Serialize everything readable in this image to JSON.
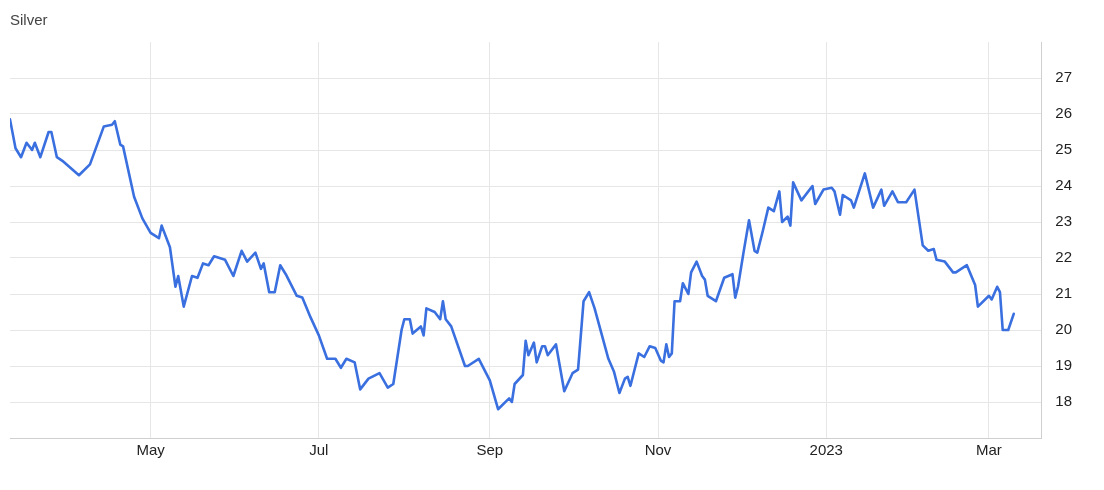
{
  "chart_data": {
    "type": "line",
    "title": "Silver",
    "xlim": [
      "2022-03-11",
      "2023-03-20"
    ],
    "xticks": [
      {
        "value": "2022-05-01",
        "label": "May"
      },
      {
        "value": "2022-07-01",
        "label": "Jul"
      },
      {
        "value": "2022-09-01",
        "label": "Sep"
      },
      {
        "value": "2022-11-01",
        "label": "Nov"
      },
      {
        "value": "2023-01-01",
        "label": "2023"
      },
      {
        "value": "2023-03-01",
        "label": "Mar"
      }
    ],
    "ylim": [
      17,
      28
    ],
    "yticks": [
      18,
      19,
      20,
      21,
      22,
      23,
      24,
      25,
      26,
      27
    ],
    "grid": true,
    "x": [
      "2022-03-11",
      "2022-03-13",
      "2022-03-15",
      "2022-03-17",
      "2022-03-19",
      "2022-03-20",
      "2022-03-22",
      "2022-03-25",
      "2022-03-26",
      "2022-03-28",
      "2022-03-30",
      "2022-04-05",
      "2022-04-09",
      "2022-04-14",
      "2022-04-17",
      "2022-04-18",
      "2022-04-20",
      "2022-04-21",
      "2022-04-25",
      "2022-04-28",
      "2022-05-01",
      "2022-05-04",
      "2022-05-05",
      "2022-05-08",
      "2022-05-10",
      "2022-05-11",
      "2022-05-13",
      "2022-05-16",
      "2022-05-18",
      "2022-05-20",
      "2022-05-22",
      "2022-05-24",
      "2022-05-28",
      "2022-05-31",
      "2022-06-03",
      "2022-06-05",
      "2022-06-08",
      "2022-06-10",
      "2022-06-11",
      "2022-06-13",
      "2022-06-15",
      "2022-06-17",
      "2022-06-19",
      "2022-06-23",
      "2022-06-25",
      "2022-06-28",
      "2022-07-01",
      "2022-07-04",
      "2022-07-07",
      "2022-07-09",
      "2022-07-11",
      "2022-07-14",
      "2022-07-16",
      "2022-07-19",
      "2022-07-23",
      "2022-07-26",
      "2022-07-28",
      "2022-07-31",
      "2022-08-01",
      "2022-08-03",
      "2022-08-04",
      "2022-08-07",
      "2022-08-08",
      "2022-08-09",
      "2022-08-12",
      "2022-08-14",
      "2022-08-15",
      "2022-08-16",
      "2022-08-18",
      "2022-08-23",
      "2022-08-24",
      "2022-08-28",
      "2022-09-01",
      "2022-09-04",
      "2022-09-08",
      "2022-09-09",
      "2022-09-10",
      "2022-09-13",
      "2022-09-14",
      "2022-09-15",
      "2022-09-17",
      "2022-09-18",
      "2022-09-20",
      "2022-09-21",
      "2022-09-22",
      "2022-09-25",
      "2022-09-28",
      "2022-10-01",
      "2022-10-03",
      "2022-10-05",
      "2022-10-07",
      "2022-10-09",
      "2022-10-14",
      "2022-10-16",
      "2022-10-18",
      "2022-10-20",
      "2022-10-21",
      "2022-10-22",
      "2022-10-25",
      "2022-10-27",
      "2022-10-29",
      "2022-10-31",
      "2022-11-02",
      "2022-11-03",
      "2022-11-04",
      "2022-11-05",
      "2022-11-06",
      "2022-11-07",
      "2022-11-09",
      "2022-11-10",
      "2022-11-12",
      "2022-11-13",
      "2022-11-15",
      "2022-11-17",
      "2022-11-18",
      "2022-11-19",
      "2022-11-22",
      "2022-11-25",
      "2022-11-28",
      "2022-11-29",
      "2022-11-30",
      "2022-12-02",
      "2022-12-04",
      "2022-12-06",
      "2022-12-07",
      "2022-12-09",
      "2022-12-11",
      "2022-12-13",
      "2022-12-15",
      "2022-12-16",
      "2022-12-18",
      "2022-12-19",
      "2022-12-20",
      "2022-12-23",
      "2022-12-27",
      "2022-12-28",
      "2022-12-31",
      "2023-01-03",
      "2023-01-04",
      "2023-01-06",
      "2023-01-07",
      "2023-01-10",
      "2023-01-11",
      "2023-01-15",
      "2023-01-18",
      "2023-01-21",
      "2023-01-22",
      "2023-01-25",
      "2023-01-27",
      "2023-01-30",
      "2023-02-02",
      "2023-02-05",
      "2023-02-07",
      "2023-02-09",
      "2023-02-10",
      "2023-02-13",
      "2023-02-16",
      "2023-02-17",
      "2023-02-21",
      "2023-02-24",
      "2023-02-25",
      "2023-03-01",
      "2023-03-02",
      "2023-03-04",
      "2023-03-05",
      "2023-03-06",
      "2023-03-08",
      "2023-03-10"
    ],
    "series": [
      {
        "color": "#3a6fe0",
        "values": [
          25.85,
          25.05,
          24.8,
          25.2,
          25.0,
          25.2,
          24.8,
          25.5,
          25.5,
          24.8,
          24.7,
          24.3,
          24.6,
          25.65,
          25.7,
          25.8,
          25.15,
          25.1,
          23.7,
          23.1,
          22.7,
          22.55,
          22.9,
          22.3,
          21.2,
          21.5,
          20.65,
          21.5,
          21.45,
          21.85,
          21.8,
          22.05,
          21.95,
          21.5,
          22.2,
          21.9,
          22.15,
          21.7,
          21.85,
          21.05,
          21.05,
          21.8,
          21.55,
          20.95,
          20.9,
          20.35,
          19.85,
          19.2,
          19.2,
          18.95,
          19.2,
          19.1,
          18.35,
          18.65,
          18.8,
          18.4,
          18.5,
          20.0,
          20.3,
          20.3,
          19.9,
          20.1,
          19.85,
          20.6,
          20.5,
          20.3,
          20.8,
          20.3,
          20.1,
          19.0,
          19.0,
          19.2,
          18.6,
          17.8,
          18.1,
          18.0,
          18.5,
          18.75,
          19.7,
          19.3,
          19.65,
          19.1,
          19.55,
          19.55,
          19.3,
          19.6,
          18.3,
          18.8,
          18.9,
          20.8,
          21.05,
          20.6,
          19.2,
          18.85,
          18.25,
          18.65,
          18.7,
          18.45,
          19.35,
          19.25,
          19.55,
          19.5,
          19.15,
          19.1,
          19.6,
          19.25,
          19.35,
          20.8,
          20.8,
          21.3,
          21.0,
          21.6,
          21.9,
          21.5,
          21.4,
          20.95,
          20.8,
          21.45,
          21.55,
          20.9,
          21.2,
          22.15,
          23.05,
          22.2,
          22.15,
          22.75,
          23.4,
          23.3,
          23.85,
          23.0,
          23.15,
          22.9,
          24.1,
          23.6,
          24.0,
          23.5,
          23.9,
          23.95,
          23.85,
          23.2,
          23.75,
          23.6,
          23.4,
          24.35,
          23.4,
          23.9,
          23.45,
          23.85,
          23.55,
          23.55,
          23.9,
          22.35,
          22.2,
          22.25,
          21.95,
          21.9,
          21.6,
          21.6,
          21.8,
          21.25,
          20.65,
          20.95,
          20.85,
          21.2,
          21.05,
          20.0,
          20.0,
          20.45
        ]
      }
    ]
  }
}
